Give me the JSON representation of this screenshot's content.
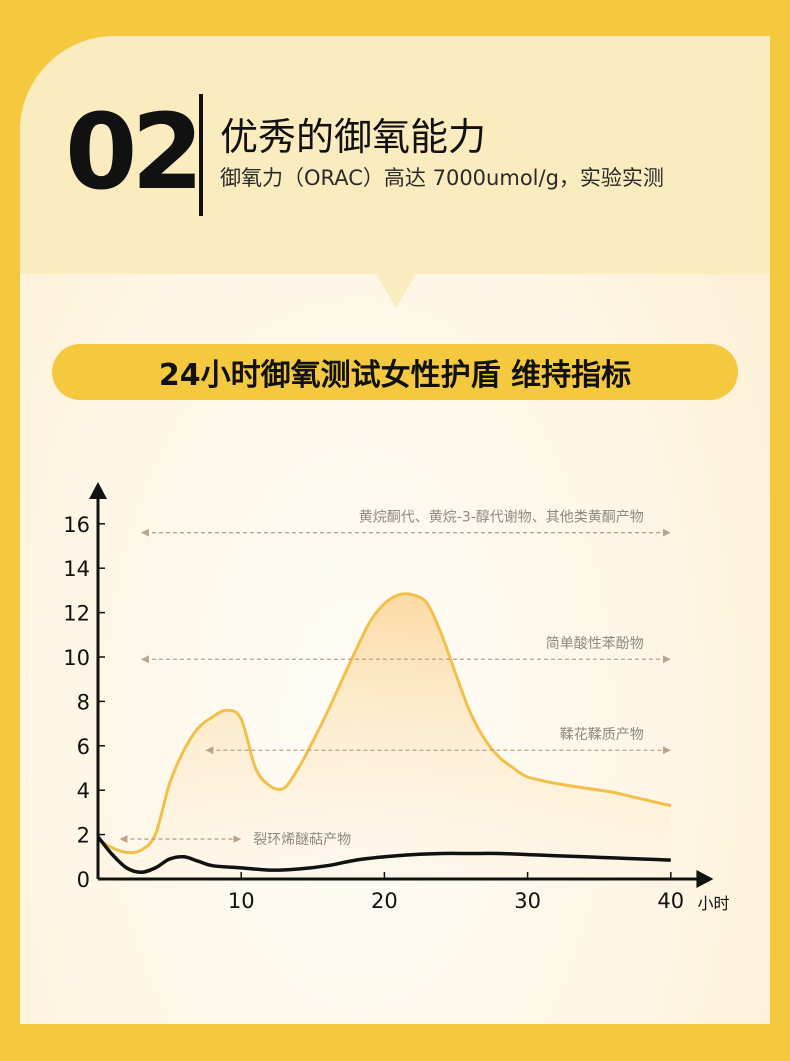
{
  "header": {
    "number": "02",
    "title": "优秀的御氧能力",
    "subtitle": "御氧力（ORAC）高达 7000umol/g，实验实测"
  },
  "banner": {
    "text": "24小时御氧测试女性护盾 维持指标"
  },
  "colors": {
    "page_bg": "#f5c93f",
    "accent": "#f5c93f",
    "curve": "#f2c04a",
    "arrow": "#b8a48a"
  },
  "chart_data": {
    "type": "line",
    "title": "",
    "xlabel": "小时",
    "ylabel": "",
    "xlim": [
      0,
      42
    ],
    "ylim": [
      0,
      16
    ],
    "x_ticks": [
      10,
      20,
      30,
      40
    ],
    "y_ticks": [
      0,
      2,
      4,
      6,
      8,
      10,
      12,
      14,
      16
    ],
    "grid": false,
    "series": [
      {
        "style": "area",
        "color": "#f2c04a",
        "x": [
          0,
          1,
          2,
          3,
          4,
          5,
          6,
          7,
          8,
          9,
          10,
          11,
          12,
          13,
          14,
          15,
          16,
          17,
          18,
          19,
          20,
          21,
          22,
          23,
          24,
          25,
          26,
          27,
          28,
          29,
          30,
          32,
          34,
          36,
          38,
          40
        ],
        "y": [
          1.8,
          1.4,
          1.2,
          1.3,
          2.0,
          4.3,
          5.8,
          6.8,
          7.3,
          7.6,
          7.2,
          5.0,
          4.2,
          4.1,
          5.0,
          6.2,
          7.5,
          8.9,
          10.3,
          11.6,
          12.4,
          12.8,
          12.8,
          12.4,
          11.0,
          9.2,
          7.5,
          6.3,
          5.5,
          5.0,
          4.6,
          4.3,
          4.1,
          3.9,
          3.6,
          3.3
        ]
      },
      {
        "style": "line",
        "color": "#111111",
        "x": [
          0,
          1,
          2,
          3,
          4,
          5,
          6,
          7,
          8,
          10,
          12,
          14,
          16,
          18,
          20,
          22,
          24,
          26,
          28,
          30,
          32,
          34,
          36,
          38,
          40
        ],
        "y": [
          1.9,
          1.1,
          0.5,
          0.3,
          0.5,
          0.9,
          1.0,
          0.8,
          0.6,
          0.5,
          0.4,
          0.45,
          0.6,
          0.85,
          1.0,
          1.1,
          1.15,
          1.15,
          1.15,
          1.1,
          1.05,
          1.0,
          0.95,
          0.9,
          0.85
        ]
      }
    ],
    "annotations": [
      {
        "text": "黄烷酮代、黄烷-3-醇代谢物、其他类黄酮产物",
        "x_start": 3,
        "x_end": 40,
        "y": 15.6
      },
      {
        "text": "简单酸性苯酚物",
        "x_start": 3,
        "x_end": 40,
        "y": 9.9
      },
      {
        "text": "鞣花鞣质产物",
        "x_start": 7.5,
        "x_end": 40,
        "y": 5.8
      },
      {
        "text": "裂环烯醚萜产物",
        "x_start": 1.5,
        "x_end": 10,
        "y": 1.8
      }
    ]
  }
}
